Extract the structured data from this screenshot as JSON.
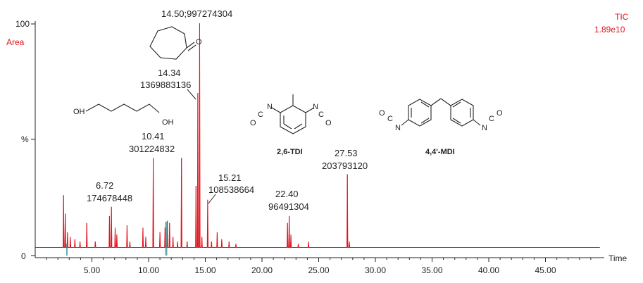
{
  "chart_data": {
    "type": "line",
    "trace_name": "TIC",
    "trace_max": "1.89e10",
    "ylabel_top": "Area",
    "ylabel_mid": "%",
    "xlabel": "Time",
    "xlim": [
      0,
      50
    ],
    "ylim": [
      0,
      100
    ],
    "x_ticks": [
      "5.00",
      "10.00",
      "15.00",
      "20.00",
      "25.00",
      "30.00",
      "35.00",
      "40.00",
      "45.00"
    ],
    "x_tick_values": [
      5,
      10,
      15,
      20,
      25,
      30,
      35,
      40,
      45
    ],
    "y_ticks": [
      "0",
      "100"
    ],
    "color": "#e0141e",
    "baseline": 3.5,
    "peaks": [
      {
        "x": 2.5,
        "y": 26
      },
      {
        "x": 2.65,
        "y": 18
      },
      {
        "x": 2.85,
        "y": 10
      },
      {
        "x": 3.1,
        "y": 8
      },
      {
        "x": 3.5,
        "y": 7
      },
      {
        "x": 3.95,
        "y": 6
      },
      {
        "x": 4.55,
        "y": 14
      },
      {
        "x": 5.3,
        "y": 6
      },
      {
        "x": 6.55,
        "y": 17
      },
      {
        "x": 6.72,
        "y": 21
      },
      {
        "x": 7.05,
        "y": 12
      },
      {
        "x": 7.2,
        "y": 9
      },
      {
        "x": 8.1,
        "y": 13
      },
      {
        "x": 8.35,
        "y": 6
      },
      {
        "x": 9.5,
        "y": 12
      },
      {
        "x": 9.75,
        "y": 8
      },
      {
        "x": 10.41,
        "y": 42
      },
      {
        "x": 11.0,
        "y": 10
      },
      {
        "x": 11.45,
        "y": 12
      },
      {
        "x": 11.65,
        "y": 15
      },
      {
        "x": 11.85,
        "y": 14
      },
      {
        "x": 12.15,
        "y": 8
      },
      {
        "x": 12.55,
        "y": 6
      },
      {
        "x": 12.9,
        "y": 42
      },
      {
        "x": 13.4,
        "y": 6
      },
      {
        "x": 14.18,
        "y": 30
      },
      {
        "x": 14.34,
        "y": 70
      },
      {
        "x": 14.5,
        "y": 100
      },
      {
        "x": 14.7,
        "y": 8
      },
      {
        "x": 15.21,
        "y": 24
      },
      {
        "x": 15.55,
        "y": 6
      },
      {
        "x": 16.05,
        "y": 10
      },
      {
        "x": 16.45,
        "y": 7
      },
      {
        "x": 17.1,
        "y": 6
      },
      {
        "x": 17.7,
        "y": 5
      },
      {
        "x": 22.25,
        "y": 14
      },
      {
        "x": 22.4,
        "y": 17
      },
      {
        "x": 22.55,
        "y": 9
      },
      {
        "x": 23.2,
        "y": 5
      },
      {
        "x": 24.1,
        "y": 6
      },
      {
        "x": 27.53,
        "y": 35
      },
      {
        "x": 27.7,
        "y": 6
      }
    ],
    "annotations": [
      {
        "label": "14.50;997274304"
      },
      {
        "label": "14.34",
        "sublabel": "1369883136"
      },
      {
        "label": "10.41",
        "sublabel": "301224832"
      },
      {
        "label": "6.72",
        "sublabel": "174678448"
      },
      {
        "label": "15.21",
        "sublabel": "108538664"
      },
      {
        "label": "22.40",
        "sublabel": "96491304"
      },
      {
        "label": "27.53",
        "sublabel": "203793120"
      }
    ],
    "structures": {
      "tdi_label": "2,6-TDI",
      "mdi_label": "4,4'-MDI",
      "oh_label": "OH",
      "o_label": "O",
      "n_label": "N",
      "c_label": "C"
    }
  }
}
